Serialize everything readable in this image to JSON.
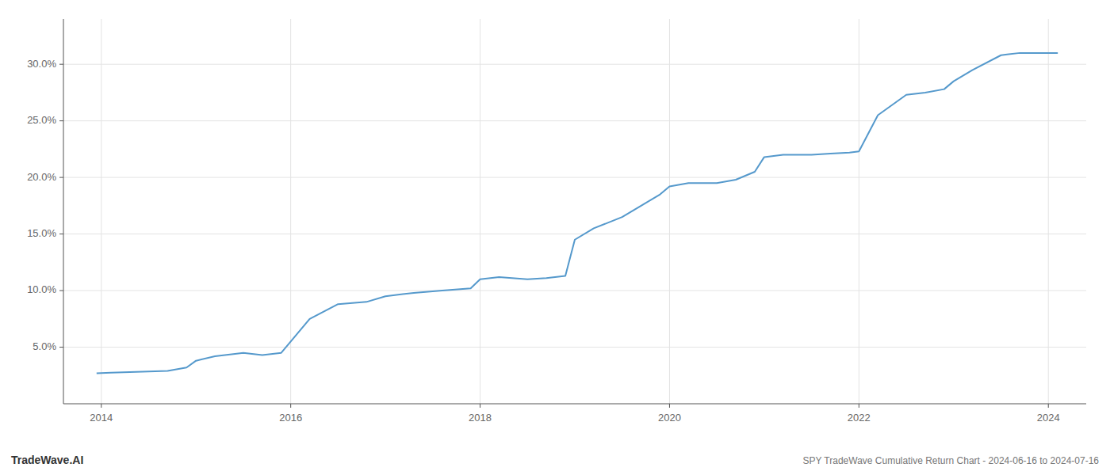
{
  "chart_data": {
    "type": "line",
    "title": "SPY TradeWave Cumulative Return Chart - 2024-06-16 to 2024-07-16",
    "annotations": [
      "TradeWave.AI"
    ],
    "color": "#5599cc",
    "grid": true,
    "x": [
      2013.95,
      2014.1,
      2014.3,
      2014.5,
      2014.7,
      2014.9,
      2015.0,
      2015.2,
      2015.5,
      2015.7,
      2015.9,
      2016.0,
      2016.2,
      2016.5,
      2016.8,
      2017.0,
      2017.3,
      2017.6,
      2017.9,
      2018.0,
      2018.2,
      2018.5,
      2018.7,
      2018.9,
      2019.0,
      2019.2,
      2019.5,
      2019.7,
      2019.9,
      2020.0,
      2020.2,
      2020.5,
      2020.7,
      2020.9,
      2021.0,
      2021.2,
      2021.5,
      2021.7,
      2021.9,
      2022.0,
      2022.2,
      2022.5,
      2022.7,
      2022.9,
      2023.0,
      2023.2,
      2023.5,
      2023.7,
      2023.9,
      2024.0,
      2024.1
    ],
    "values": [
      2.7,
      2.75,
      2.8,
      2.85,
      2.9,
      3.2,
      3.8,
      4.2,
      4.5,
      4.3,
      4.5,
      5.5,
      7.5,
      8.8,
      9.0,
      9.5,
      9.8,
      10.0,
      10.2,
      11.0,
      11.2,
      11.0,
      11.1,
      11.3,
      14.5,
      15.5,
      16.5,
      17.5,
      18.5,
      19.2,
      19.5,
      19.5,
      19.8,
      20.5,
      21.8,
      22.0,
      22.0,
      22.1,
      22.2,
      22.3,
      25.5,
      27.3,
      27.5,
      27.8,
      28.5,
      29.5,
      30.8,
      31.0,
      31.0,
      31.0,
      31.0
    ],
    "xlim": [
      2013.6,
      2024.4
    ],
    "ylim": [
      0,
      34
    ],
    "xticks": [
      2014,
      2016,
      2018,
      2020,
      2022,
      2024
    ],
    "yticks": [
      {
        "value": 5.0,
        "label": "5.0%"
      },
      {
        "value": 10.0,
        "label": "10.0%"
      },
      {
        "value": 15.0,
        "label": "15.0%"
      },
      {
        "value": 20.0,
        "label": "20.0%"
      },
      {
        "value": 25.0,
        "label": "25.0%"
      },
      {
        "value": 30.0,
        "label": "30.0%"
      }
    ]
  }
}
